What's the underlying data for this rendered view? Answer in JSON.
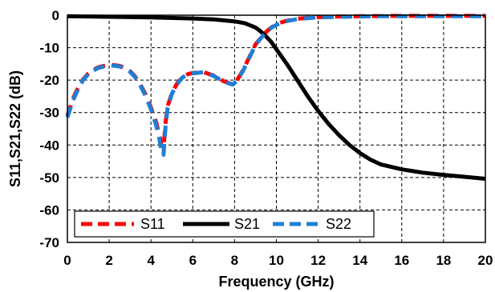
{
  "chart_data": {
    "type": "line",
    "title": "",
    "xlabel": "Frequency (GHz)",
    "ylabel": "S11,S21,S22 (dB)",
    "xlim": [
      0,
      20
    ],
    "ylim": [
      -70,
      0
    ],
    "xticks": [
      0,
      2,
      4,
      6,
      8,
      10,
      12,
      14,
      16,
      18,
      20
    ],
    "yticks": [
      0,
      -10,
      -20,
      -30,
      -40,
      -50,
      -60,
      -70
    ],
    "grid": true,
    "legend_position": "bottom-left",
    "series": [
      {
        "name": "S11",
        "color": "#ff0000",
        "style": "dashed",
        "x": [
          0,
          0.25,
          0.5,
          0.75,
          1.0,
          1.25,
          1.5,
          1.75,
          2.0,
          2.25,
          2.5,
          2.75,
          3.0,
          3.25,
          3.5,
          3.75,
          4.0,
          4.25,
          4.4,
          4.5,
          4.6,
          4.7,
          4.8,
          5.0,
          5.25,
          5.5,
          5.75,
          6.0,
          6.5,
          7.0,
          7.5,
          7.9,
          8.1,
          8.4,
          8.7,
          9.0,
          9.25,
          9.5,
          9.75,
          10.0,
          10.25,
          10.5,
          11.0,
          11.5,
          12.0,
          13.0,
          14.0,
          15.0,
          16.0,
          17.0,
          18.0,
          19.0,
          20.0
        ],
        "y": [
          -31,
          -26,
          -22.5,
          -19.8,
          -18,
          -16.8,
          -16,
          -15.6,
          -15.3,
          -15.4,
          -15.6,
          -16.2,
          -17.2,
          -19,
          -21.5,
          -24.5,
          -28.5,
          -33,
          -37,
          -40,
          -41,
          -33,
          -28,
          -24,
          -21,
          -19,
          -18.2,
          -17.8,
          -17.5,
          -18.6,
          -20.4,
          -21.3,
          -20.2,
          -17,
          -13,
          -9,
          -7,
          -5.2,
          -3.8,
          -2.9,
          -2.2,
          -1.7,
          -1.1,
          -0.8,
          -0.6,
          -0.4,
          -0.3,
          -0.25,
          -0.2,
          -0.2,
          -0.2,
          -0.2,
          -0.2
        ]
      },
      {
        "name": "S21",
        "color": "#000000",
        "style": "solid",
        "x": [
          0,
          2,
          4,
          6,
          7,
          8,
          8.5,
          9.0,
          9.25,
          9.5,
          9.75,
          10.0,
          10.5,
          11.0,
          11.5,
          12.0,
          12.5,
          13.0,
          13.5,
          14.0,
          14.5,
          15.0,
          16.0,
          17.0,
          18.0,
          19.0,
          20.0
        ],
        "y": [
          -0.3,
          -0.5,
          -0.7,
          -1.0,
          -1.3,
          -1.9,
          -2.5,
          -3.8,
          -5,
          -6.5,
          -8.2,
          -10.5,
          -15,
          -20,
          -25,
          -29.5,
          -33.5,
          -37,
          -40,
          -42.5,
          -44.5,
          -46,
          -47.5,
          -48.5,
          -49.2,
          -49.8,
          -50.4
        ]
      },
      {
        "name": "S22",
        "color": "#1f7fd4",
        "style": "dashed",
        "x": [
          0,
          0.25,
          0.5,
          0.75,
          1.0,
          1.25,
          1.5,
          1.75,
          2.0,
          2.25,
          2.5,
          2.75,
          3.0,
          3.25,
          3.5,
          3.75,
          4.0,
          4.25,
          4.4,
          4.5,
          4.6,
          4.7,
          4.8,
          5.0,
          5.25,
          5.5,
          5.75,
          6.0,
          6.5,
          7.0,
          7.5,
          7.9,
          8.1,
          8.4,
          8.7,
          9.0,
          9.25,
          9.5,
          9.75,
          10.0,
          10.25,
          10.5,
          11.0,
          11.5,
          12.0,
          13.0,
          14.0,
          15.0,
          16.0,
          17.0,
          18.0,
          19.0,
          20.0
        ],
        "y": [
          -31.5,
          -26.5,
          -23,
          -20,
          -18.2,
          -17,
          -16.2,
          -15.8,
          -15.5,
          -15.6,
          -15.8,
          -16.4,
          -17.4,
          -19.2,
          -21.8,
          -25,
          -29,
          -34,
          -38,
          -42,
          -43,
          -34,
          -28.5,
          -24.2,
          -21.2,
          -19.2,
          -18.3,
          -17.9,
          -17.6,
          -18.7,
          -20.5,
          -21.4,
          -20.3,
          -17.2,
          -13.2,
          -9.2,
          -7.1,
          -5.3,
          -3.9,
          -3.0,
          -2.3,
          -1.8,
          -1.2,
          -0.9,
          -0.7,
          -0.5,
          -0.4,
          -0.3,
          -0.3,
          -0.3,
          -0.3,
          -0.3,
          -0.3
        ]
      }
    ]
  }
}
